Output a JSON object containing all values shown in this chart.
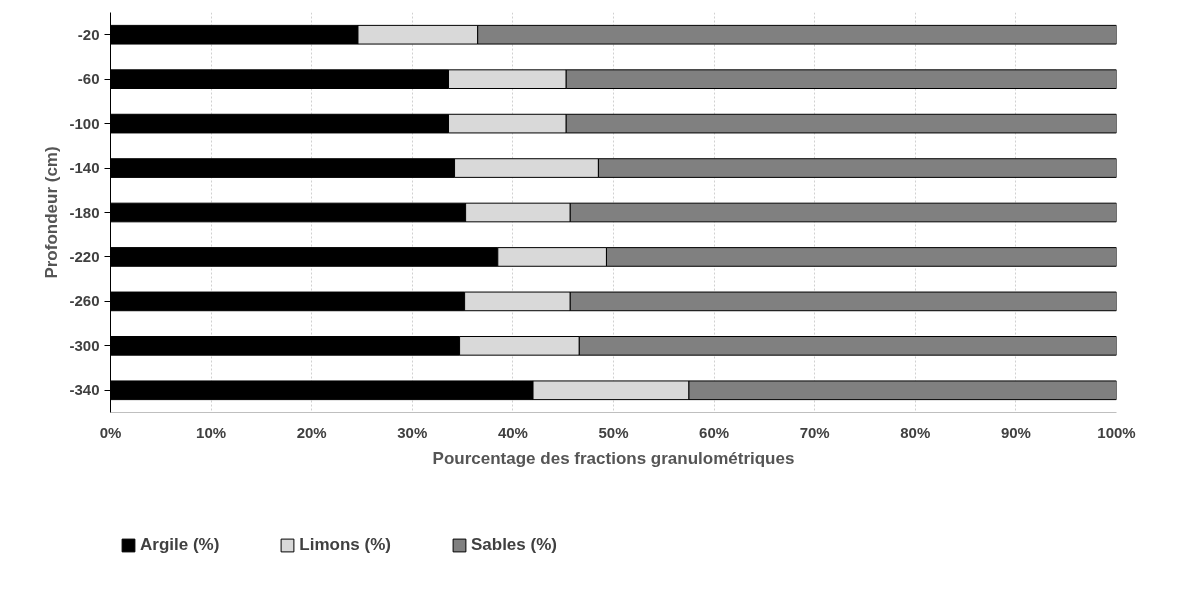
{
  "chart_data": {
    "type": "bar",
    "orientation": "horizontal",
    "stacked": true,
    "xlabel": "Pourcentage des fractions granulométriques",
    "ylabel": "Profondeur (cm)",
    "categories": [
      "-20",
      "-60",
      "-100",
      "-140",
      "-180",
      "-220",
      "-260",
      "-300",
      "-340"
    ],
    "series": [
      {
        "name": "Argile (%)",
        "color": "#000000",
        "values": [
          24.6,
          33.6,
          33.6,
          34.2,
          35.3,
          38.5,
          35.2,
          34.7,
          42.0
        ]
      },
      {
        "name": "Limons (%)",
        "color": "#d9d9d9",
        "values": [
          11.9,
          11.7,
          11.7,
          14.3,
          10.4,
          10.8,
          10.5,
          11.9,
          15.5
        ]
      },
      {
        "name": "Sables (%)",
        "color": "#808080",
        "values": [
          63.5,
          54.7,
          54.7,
          51.5,
          54.3,
          50.7,
          54.3,
          53.4,
          42.5
        ]
      }
    ],
    "xlim": [
      0,
      100
    ],
    "xticks": [
      {
        "value": 0,
        "label": "0%"
      },
      {
        "value": 10,
        "label": "10%"
      },
      {
        "value": 20,
        "label": "20%"
      },
      {
        "value": 30,
        "label": "30%"
      },
      {
        "value": 40,
        "label": "40%"
      },
      {
        "value": 50,
        "label": "50%"
      },
      {
        "value": 60,
        "label": "60%"
      },
      {
        "value": 70,
        "label": "70%"
      },
      {
        "value": 80,
        "label": "80%"
      },
      {
        "value": 90,
        "label": "90%"
      },
      {
        "value": 100,
        "label": "100%"
      }
    ],
    "grid": "x",
    "legend": "bottom"
  }
}
